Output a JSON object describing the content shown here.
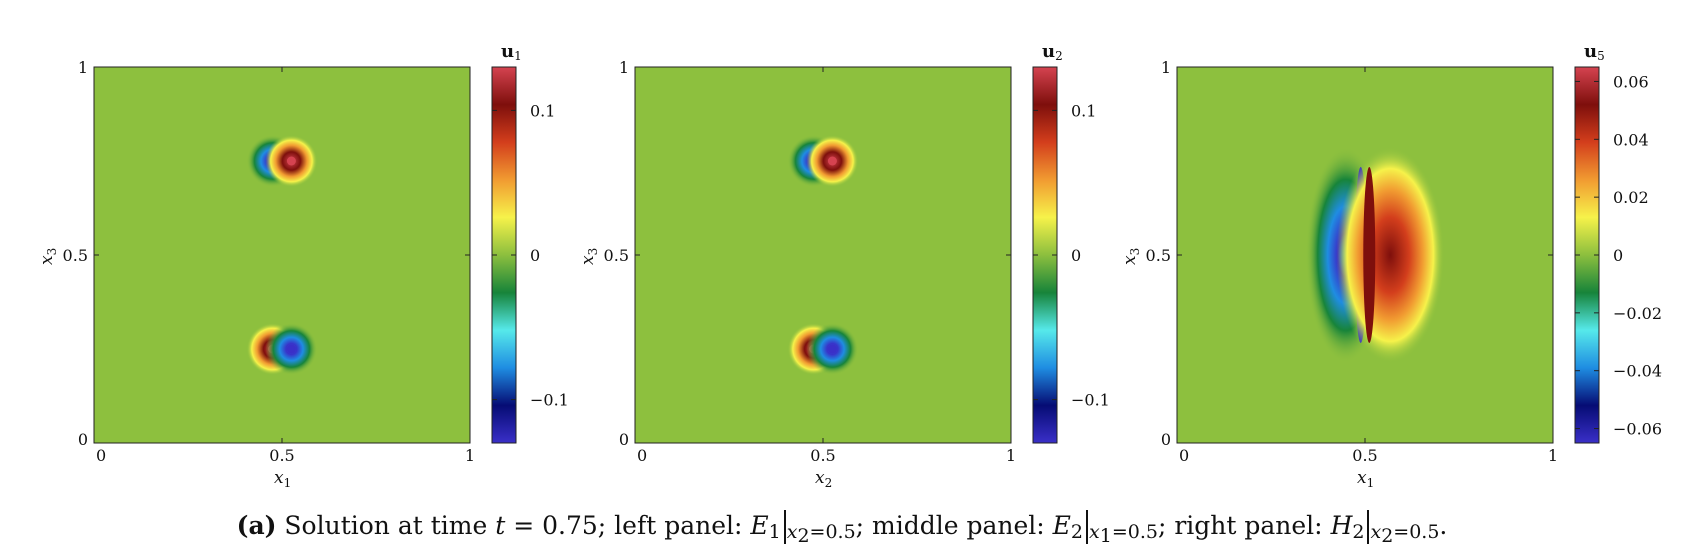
{
  "colormap": [
    "#3a2fc8",
    "#060c74",
    "#1f8de2",
    "#56e9ea",
    "#17843a",
    "#8cbf3e",
    "#f6f24a",
    "#f19b31",
    "#d33e1c",
    "#7e0f0c",
    "#d54350"
  ],
  "background_color": "#8dc03e",
  "chart_data": [
    {
      "type": "heatmap",
      "xlabel": "x1",
      "xlabel_sub": "1",
      "ylabel": "x3",
      "ylabel_sub": "3",
      "xlim": [
        0,
        1
      ],
      "ylim": [
        0,
        1
      ],
      "x_ticks": [
        0,
        0.5,
        1
      ],
      "x_tick_labels": [
        "0",
        "0.5",
        "1"
      ],
      "y_ticks": [
        0,
        0.5,
        1
      ],
      "y_tick_labels": [
        "0",
        "0.5",
        "1"
      ],
      "colorbar_title": "u1",
      "colorbar_title_sub": "1",
      "clim": [
        -0.13,
        0.13
      ],
      "colorbar_ticks": [
        -0.1,
        0,
        0.1
      ],
      "colorbar_tick_labels": [
        "−0.1",
        "0",
        "0.1"
      ],
      "features": [
        {
          "x": 0.475,
          "y": 0.75,
          "value": -0.12
        },
        {
          "x": 0.525,
          "y": 0.75,
          "value": 0.12
        },
        {
          "x": 0.475,
          "y": 0.25,
          "value": 0.12
        },
        {
          "x": 0.525,
          "y": 0.25,
          "value": -0.12
        }
      ]
    },
    {
      "type": "heatmap",
      "xlabel": "x2",
      "xlabel_sub": "2",
      "ylabel": "x3",
      "ylabel_sub": "3",
      "xlim": [
        0,
        1
      ],
      "ylim": [
        0,
        1
      ],
      "x_ticks": [
        0,
        0.5,
        1
      ],
      "x_tick_labels": [
        "0",
        "0.5",
        "1"
      ],
      "y_ticks": [
        0,
        0.5,
        1
      ],
      "y_tick_labels": [
        "0",
        "0.5",
        "1"
      ],
      "colorbar_title": "u2",
      "colorbar_title_sub": "2",
      "clim": [
        -0.13,
        0.13
      ],
      "colorbar_ticks": [
        -0.1,
        0,
        0.1
      ],
      "colorbar_tick_labels": [
        "−0.1",
        "0",
        "0.1"
      ],
      "features": [
        {
          "x": 0.475,
          "y": 0.75,
          "value": -0.12
        },
        {
          "x": 0.525,
          "y": 0.75,
          "value": 0.12
        },
        {
          "x": 0.475,
          "y": 0.25,
          "value": 0.12
        },
        {
          "x": 0.525,
          "y": 0.25,
          "value": -0.12
        }
      ]
    },
    {
      "type": "heatmap",
      "xlabel": "x1",
      "xlabel_sub": "1",
      "ylabel": "x3",
      "ylabel_sub": "3",
      "xlim": [
        0,
        1
      ],
      "ylim": [
        0,
        1
      ],
      "x_ticks": [
        0,
        0.5,
        1
      ],
      "x_tick_labels": [
        "0",
        "0.5",
        "1"
      ],
      "y_ticks": [
        0,
        0.5,
        1
      ],
      "y_tick_labels": [
        "0",
        "0.5",
        "1"
      ],
      "colorbar_title": "u5",
      "colorbar_title_sub": "5",
      "clim": [
        -0.065,
        0.065
      ],
      "colorbar_ticks": [
        -0.06,
        -0.04,
        -0.02,
        0,
        0.02,
        0.04,
        0.06
      ],
      "colorbar_tick_labels": [
        "−0.06",
        "−0.04",
        "−0.02",
        "0",
        "0.02",
        "0.04",
        "0.06"
      ],
      "features": [
        {
          "x": 0.47,
          "y": 0.5,
          "value": -0.062,
          "y_extent": [
            0.25,
            0.75
          ]
        },
        {
          "x": 0.53,
          "y": 0.5,
          "value": 0.055,
          "y_extent": [
            0.25,
            0.75
          ]
        }
      ]
    }
  ],
  "caption": {
    "label": "(a)",
    "text_1": "Solution at time",
    "t_var": "t",
    "t_value": "= 0.75; left panel:",
    "e1": "E",
    "e1_sub": "1",
    "eval_1_var": "x",
    "eval_1_sub": "2",
    "eval_1_val": "=0.5",
    "text_2": "; middle panel:",
    "e2": "E",
    "e2_sub": "2",
    "eval_2_var": "x",
    "eval_2_sub": "1",
    "eval_2_val": "=0.5",
    "text_3": "; right panel:",
    "h2": "H",
    "h2_sub": "2",
    "eval_3_var": "x",
    "eval_3_sub": "2",
    "eval_3_val": "=0.5",
    "end": "."
  }
}
